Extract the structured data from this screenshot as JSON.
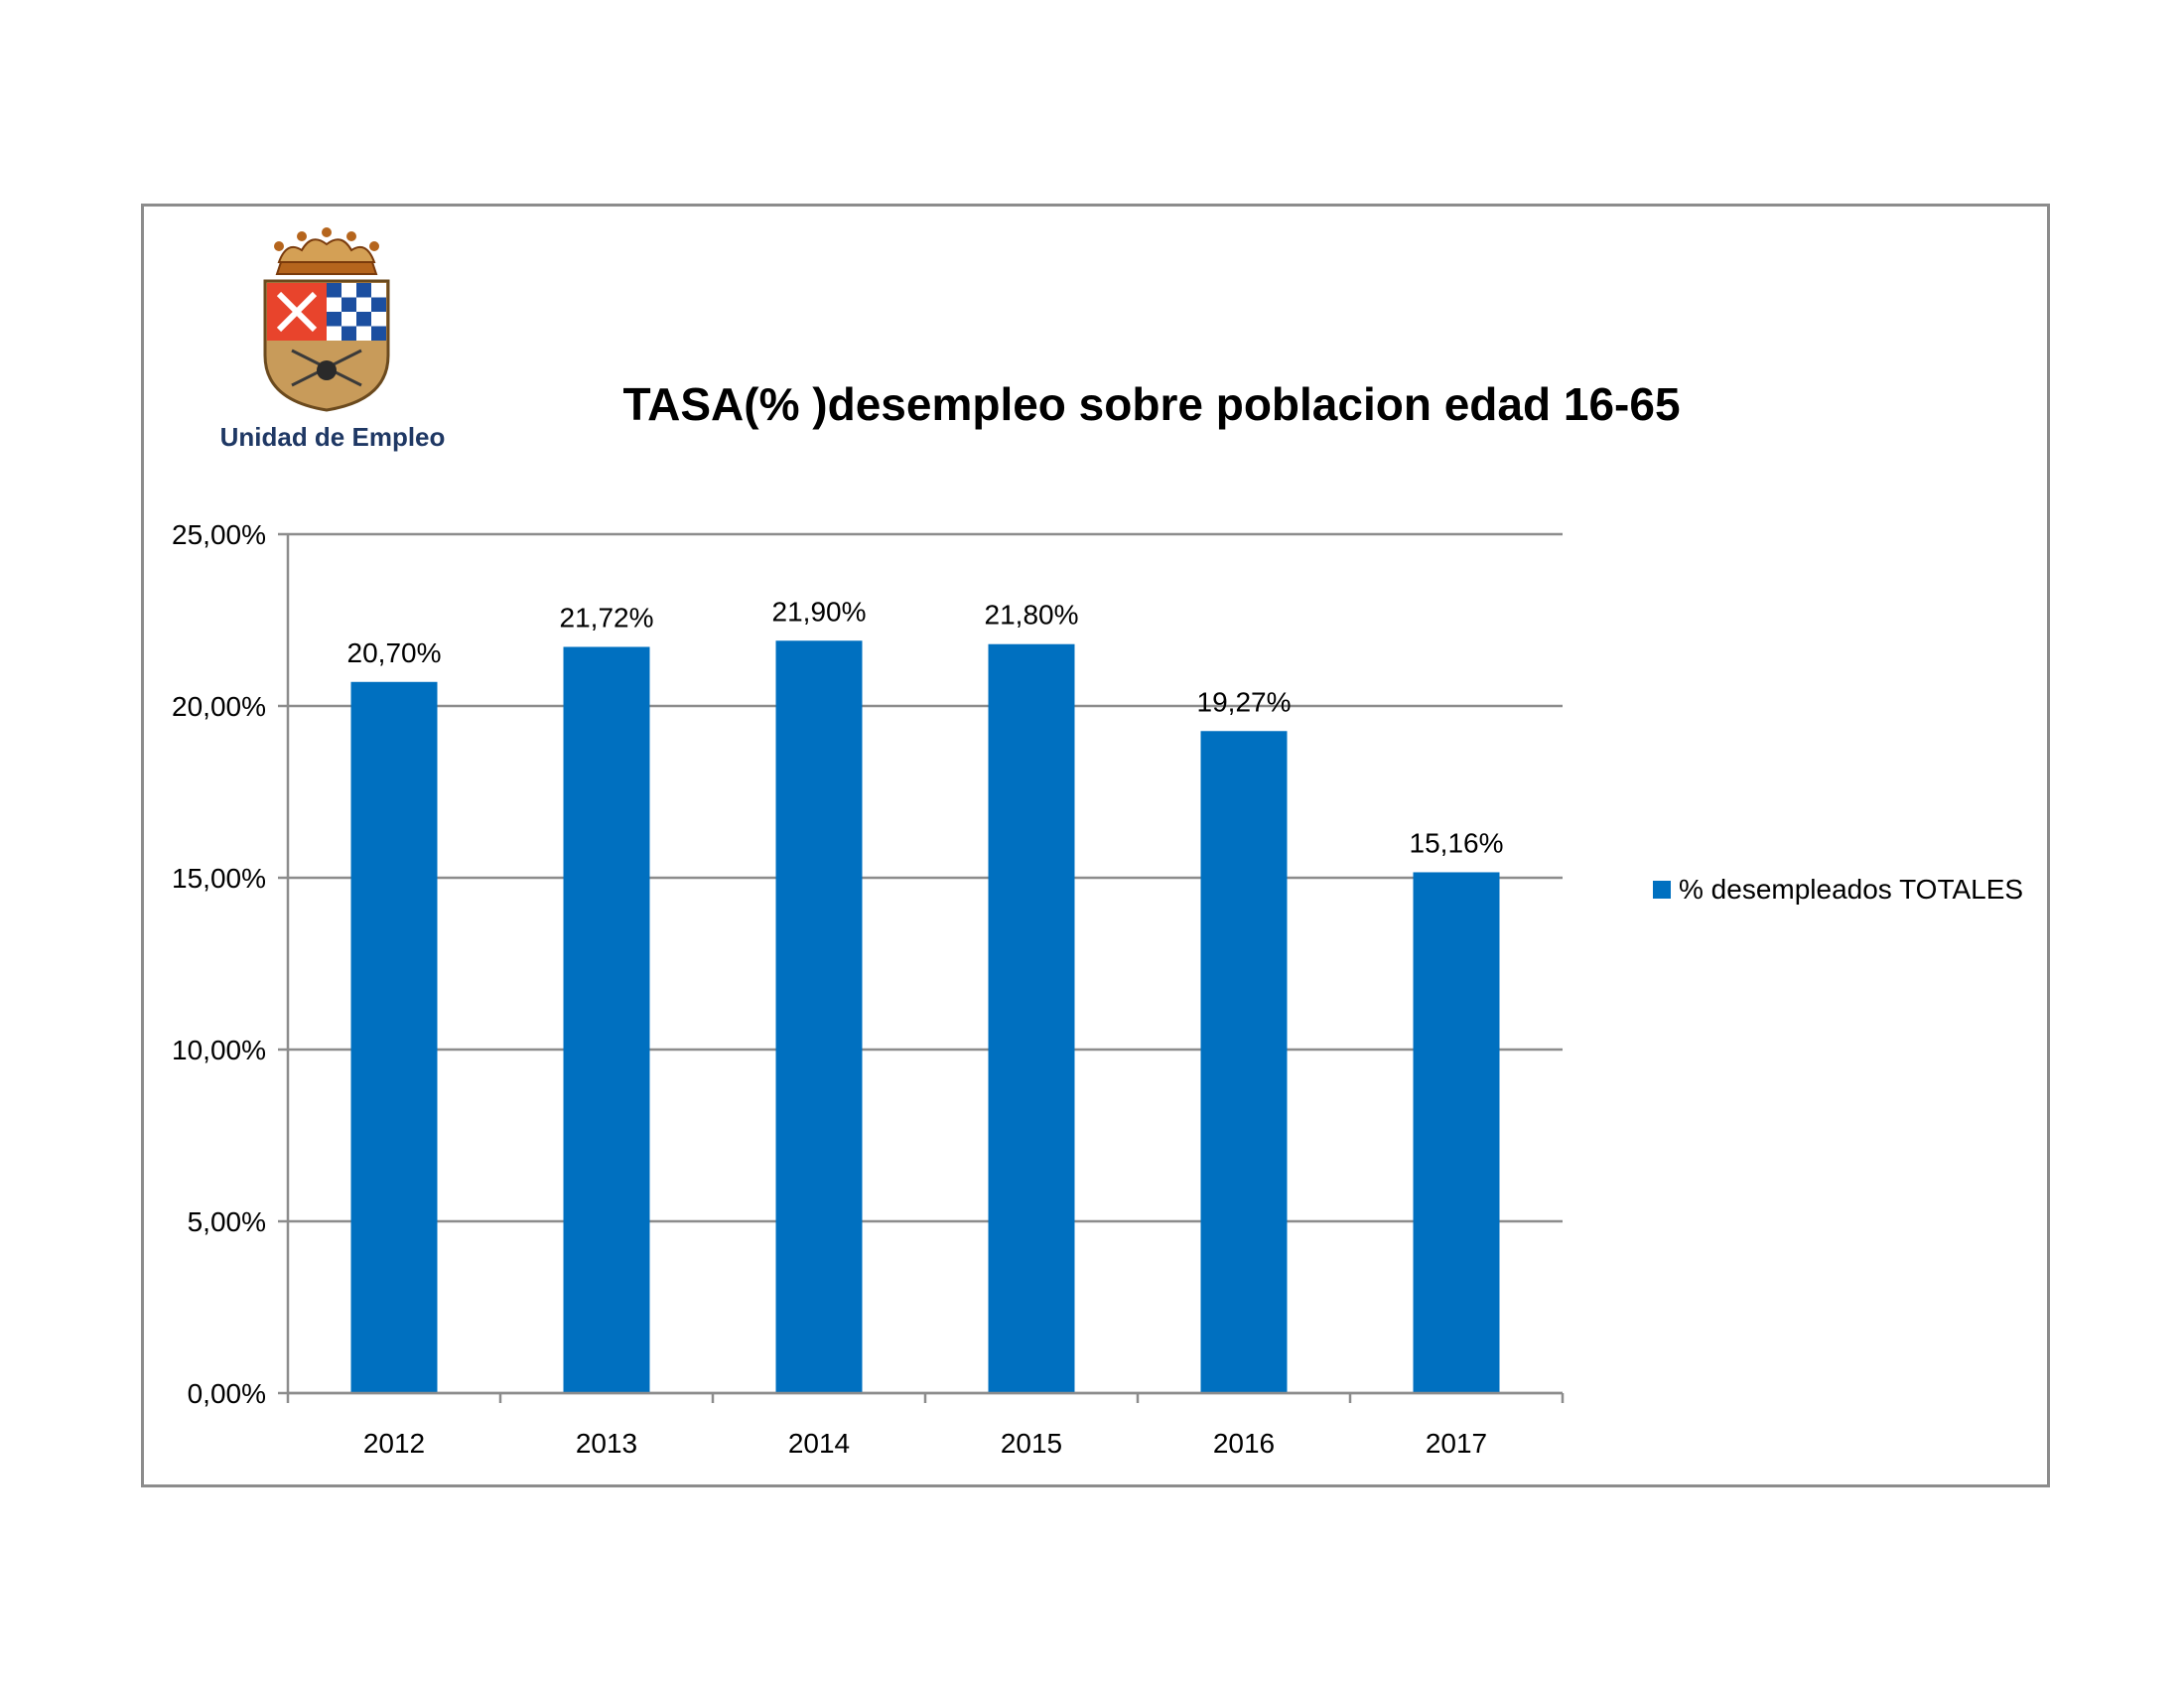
{
  "header": {
    "org_name": "Unidad de Empleo",
    "logo_icon": "coat-of-arms-icon"
  },
  "colors": {
    "bar": "#0070c0",
    "grid": "#8c8c8c",
    "frame": "#8c8c8c",
    "org_name": "#1f3864"
  },
  "chart_data": {
    "type": "bar",
    "title": "TASA(% )desempleo sobre poblacion edad 16-65",
    "categories": [
      "2012",
      "2013",
      "2014",
      "2015",
      "2016",
      "2017"
    ],
    "series": [
      {
        "name": "% desempleados TOTALES",
        "values": [
          20.7,
          21.72,
          21.9,
          21.8,
          19.27,
          15.16
        ],
        "labels": [
          "20,70%",
          "21,72%",
          "21,90%",
          "21,80%",
          "19,27%",
          "15,16%"
        ]
      }
    ],
    "ylim": [
      0,
      25
    ],
    "yticks": [
      0,
      5,
      10,
      15,
      20,
      25
    ],
    "ytick_labels": [
      "0,00%",
      "5,00%",
      "10,00%",
      "15,00%",
      "20,00%",
      "25,00%"
    ],
    "xlabel": "",
    "ylabel": "",
    "grid": true,
    "legend_position": "right"
  }
}
